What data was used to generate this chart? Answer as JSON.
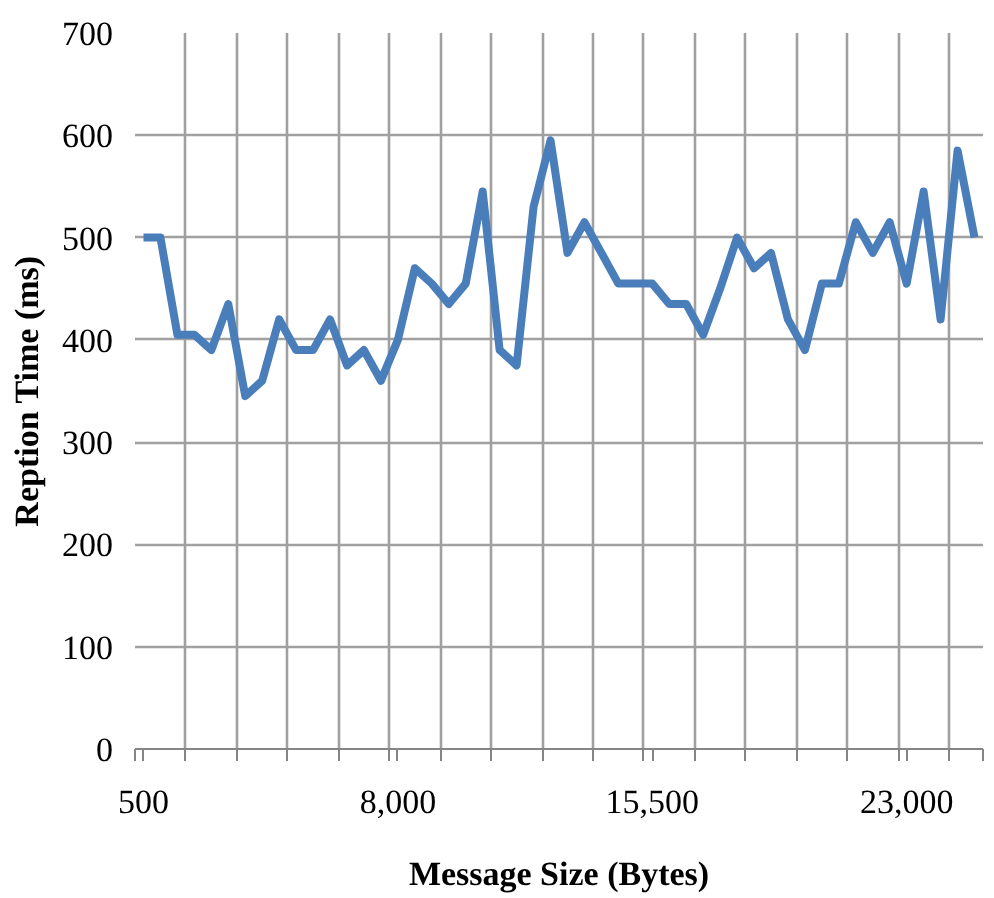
{
  "chart_data": {
    "type": "line",
    "xlabel": "Message Size (Bytes)",
    "ylabel": "Reption Time (ms)",
    "x": [
      500,
      1000,
      1500,
      2000,
      2500,
      3000,
      3500,
      4000,
      4500,
      5000,
      5500,
      6000,
      6500,
      7000,
      7500,
      8000,
      8500,
      9000,
      9500,
      10000,
      10500,
      11000,
      11500,
      12000,
      12500,
      13000,
      13500,
      14000,
      14500,
      15000,
      15500,
      16000,
      16500,
      17000,
      17500,
      18000,
      18500,
      19000,
      19500,
      20000,
      20500,
      21000,
      21500,
      22000,
      22500,
      23000,
      23500,
      24000,
      24500,
      25000
    ],
    "series": [
      {
        "color": "#4a7ebb",
        "values": [
          500,
          500,
          405,
          405,
          390,
          435,
          345,
          360,
          420,
          390,
          390,
          420,
          375,
          390,
          360,
          400,
          470,
          455,
          435,
          455,
          545,
          390,
          375,
          530,
          595,
          485,
          515,
          485,
          455,
          455,
          455,
          435,
          435,
          405,
          450,
          500,
          470,
          485,
          420,
          390,
          455,
          455,
          515,
          485,
          515,
          455,
          545,
          420,
          585,
          500
        ]
      }
    ],
    "xlim": [
      250,
      25250
    ],
    "xticks": [
      {
        "value": 250,
        "label": null
      },
      {
        "value": 500,
        "label": "500"
      },
      {
        "value": 1750,
        "label": null
      },
      {
        "value": 3250,
        "label": null
      },
      {
        "value": 4750,
        "label": null
      },
      {
        "value": 6250,
        "label": null
      },
      {
        "value": 7750,
        "label": null
      },
      {
        "value": 8000,
        "label": "8,000"
      },
      {
        "value": 9250,
        "label": null
      },
      {
        "value": 10750,
        "label": null
      },
      {
        "value": 12250,
        "label": null
      },
      {
        "value": 13750,
        "label": null
      },
      {
        "value": 15250,
        "label": null
      },
      {
        "value": 15500,
        "label": "15,500"
      },
      {
        "value": 16750,
        "label": null
      },
      {
        "value": 18250,
        "label": null
      },
      {
        "value": 19750,
        "label": null
      },
      {
        "value": 21250,
        "label": null
      },
      {
        "value": 22750,
        "label": null
      },
      {
        "value": 23000,
        "label": "23,000"
      },
      {
        "value": 24250,
        "label": null
      },
      {
        "value": 25250,
        "label": null
      }
    ],
    "ylim": [
      0,
      700
    ],
    "yticks": [
      0,
      100,
      200,
      300,
      400,
      500,
      600,
      700
    ],
    "grid": true,
    "marker": "none",
    "line_style": "solid"
  }
}
